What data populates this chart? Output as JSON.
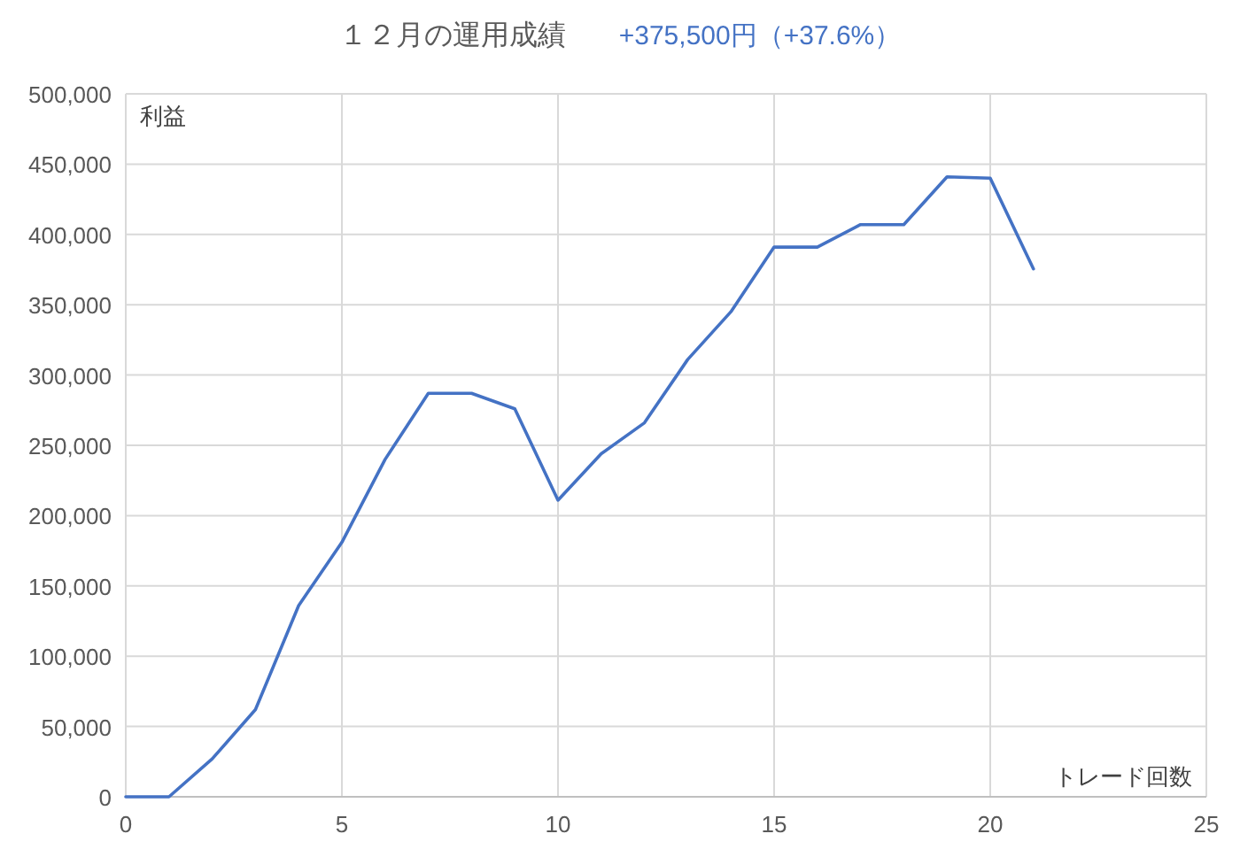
{
  "chart_data": {
    "type": "line",
    "title": "１２月の運用成績",
    "subtitle": "+375,500円（+37.6%）",
    "xlabel": "トレード回数",
    "ylabel": "利益",
    "x": [
      0,
      1,
      2,
      3,
      4,
      5,
      6,
      7,
      8,
      9,
      10,
      11,
      12,
      13,
      14,
      15,
      16,
      17,
      18,
      19,
      20,
      21
    ],
    "series": [
      {
        "color": "#4472c4",
        "values": [
          0,
          0,
          27000,
          62000,
          136000,
          181000,
          240000,
          287000,
          287000,
          276000,
          211000,
          244000,
          266000,
          311000,
          345000,
          391000,
          391000,
          407000,
          407000,
          441000,
          440000,
          375500
        ]
      }
    ],
    "xlim": [
      0,
      25
    ],
    "ylim": [
      0,
      500000
    ],
    "xticks": [
      0,
      5,
      10,
      15,
      20,
      25
    ],
    "yticks": [
      0,
      {
        "value": 50000,
        "label": "50,000"
      },
      {
        "value": 100000,
        "label": "100,000"
      },
      {
        "value": 150000,
        "label": "150,000"
      },
      {
        "value": 200000,
        "label": "200,000"
      },
      {
        "value": 250000,
        "label": "250,000"
      },
      {
        "value": 300000,
        "label": "300,000"
      },
      {
        "value": 350000,
        "label": "350,000"
      },
      {
        "value": 400000,
        "label": "400,000"
      },
      {
        "value": 450000,
        "label": "450,000"
      },
      {
        "value": 500000,
        "label": "500,000"
      }
    ],
    "grid": true
  }
}
